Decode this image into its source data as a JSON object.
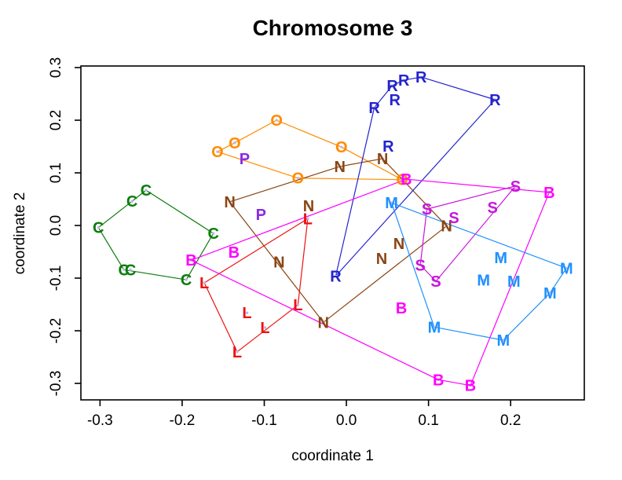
{
  "title": "Chromosome 3",
  "axes": {
    "xlabel": "coordinate 1",
    "ylabel": "coordinate 2"
  },
  "chart_data": {
    "type": "scatter",
    "title": "Chromosome 3",
    "xlabel": "coordinate 1",
    "ylabel": "coordinate 2",
    "grid": false,
    "legend": "none",
    "x_ticks": [
      -0.3,
      -0.2,
      -0.1,
      0.0,
      0.1,
      0.2
    ],
    "x_tick_labels": [
      "-0.3",
      "-0.2",
      "-0.1",
      "0.0",
      "0.1",
      "0.2"
    ],
    "y_ticks": [
      -0.3,
      -0.2,
      -0.1,
      0.0,
      0.1,
      0.2,
      0.3
    ],
    "y_tick_labels": [
      "-0.3",
      "-0.2",
      "-0.1",
      "0.0",
      "0.1",
      "0.2",
      "0.3"
    ],
    "x_range": [
      -0.3233,
      0.2897
    ],
    "y_range": [
      -0.3313,
      0.303
    ],
    "point_marker_color": "#b9b9ea",
    "groups": [
      {
        "label": "C",
        "color": "#0E7C0E",
        "points": [
          [
            -0.302,
            -0.004
          ],
          [
            -0.261,
            0.046
          ],
          [
            -0.244,
            0.067
          ],
          [
            -0.162,
            -0.015
          ],
          [
            -0.195,
            -0.103
          ],
          [
            -0.271,
            -0.084
          ],
          [
            -0.263,
            -0.084
          ]
        ],
        "edges": [
          [
            2,
            1
          ],
          [
            1,
            0
          ],
          [
            0,
            5
          ],
          [
            5,
            4
          ],
          [
            4,
            3
          ],
          [
            3,
            2
          ]
        ]
      },
      {
        "label": "O",
        "color": "#FF8C00",
        "points": [
          [
            -0.157,
            0.14
          ],
          [
            -0.136,
            0.157
          ],
          [
            -0.085,
            0.2
          ],
          [
            -0.006,
            0.149
          ],
          [
            0.068,
            0.087
          ],
          [
            -0.059,
            0.09
          ]
        ],
        "edges": [
          [
            0,
            1
          ],
          [
            1,
            2
          ],
          [
            2,
            3
          ],
          [
            3,
            4
          ],
          [
            4,
            5
          ],
          [
            5,
            0
          ]
        ]
      },
      {
        "label": "P",
        "color": "#8A2BE2",
        "points": [
          [
            -0.124,
            0.127
          ],
          [
            -0.104,
            0.021
          ]
        ],
        "edges": []
      },
      {
        "label": "N",
        "color": "#8B4513",
        "points": [
          [
            -0.142,
            0.045
          ],
          [
            -0.008,
            0.112
          ],
          [
            0.044,
            0.127
          ],
          [
            0.122,
            -0.001
          ],
          [
            -0.028,
            -0.184
          ],
          [
            -0.082,
            -0.069
          ],
          [
            -0.046,
            0.037
          ],
          [
            0.043,
            -0.063
          ],
          [
            0.064,
            -0.034
          ]
        ],
        "edges": [
          [
            0,
            1
          ],
          [
            1,
            2
          ],
          [
            2,
            3
          ],
          [
            3,
            4
          ],
          [
            4,
            0
          ]
        ]
      },
      {
        "label": "R",
        "color": "#2424CD",
        "points": [
          [
            0.034,
            0.224
          ],
          [
            0.056,
            0.266
          ],
          [
            0.07,
            0.276
          ],
          [
            0.091,
            0.282
          ],
          [
            0.181,
            0.239
          ],
          [
            -0.013,
            -0.096
          ],
          [
            0.059,
            0.239
          ],
          [
            0.051,
            0.151
          ]
        ],
        "edges": [
          [
            5,
            0
          ],
          [
            0,
            1
          ],
          [
            1,
            2
          ],
          [
            2,
            3
          ],
          [
            3,
            4
          ],
          [
            4,
            5
          ]
        ]
      },
      {
        "label": "L",
        "color": "#EE1111",
        "points": [
          [
            -0.047,
            0.013
          ],
          [
            -0.173,
            -0.109
          ],
          [
            -0.121,
            -0.166
          ],
          [
            -0.099,
            -0.194
          ],
          [
            -0.059,
            -0.151
          ],
          [
            -0.133,
            -0.24
          ]
        ],
        "edges": [
          [
            1,
            0
          ],
          [
            0,
            4
          ],
          [
            4,
            5
          ],
          [
            5,
            1
          ]
        ]
      },
      {
        "label": "B",
        "color": "#FF00FF",
        "points": [
          [
            -0.189,
            -0.066
          ],
          [
            -0.137,
            -0.051
          ],
          [
            0.073,
            0.088
          ],
          [
            0.247,
            0.063
          ],
          [
            0.067,
            -0.157
          ],
          [
            0.112,
            -0.293
          ],
          [
            0.151,
            -0.304
          ]
        ],
        "edges": [
          [
            0,
            2
          ],
          [
            2,
            3
          ],
          [
            3,
            6
          ],
          [
            6,
            5
          ],
          [
            5,
            0
          ]
        ]
      },
      {
        "label": "S",
        "color": "#C816DC",
        "points": [
          [
            0.098,
            0.031
          ],
          [
            0.131,
            0.015
          ],
          [
            0.178,
            0.034
          ],
          [
            0.206,
            0.075
          ],
          [
            0.09,
            -0.075
          ],
          [
            0.109,
            -0.106
          ]
        ],
        "edges": [
          [
            0,
            3
          ],
          [
            3,
            5
          ],
          [
            5,
            4
          ],
          [
            4,
            0
          ]
        ]
      },
      {
        "label": "M",
        "color": "#1E90FF",
        "points": [
          [
            0.055,
            0.043
          ],
          [
            0.188,
            -0.061
          ],
          [
            0.167,
            -0.104
          ],
          [
            0.204,
            -0.106
          ],
          [
            0.268,
            -0.081
          ],
          [
            0.248,
            -0.128
          ],
          [
            0.107,
            -0.193
          ],
          [
            0.191,
            -0.218
          ]
        ],
        "edges": [
          [
            0,
            4
          ],
          [
            4,
            5
          ],
          [
            5,
            7
          ],
          [
            7,
            6
          ],
          [
            6,
            0
          ]
        ]
      }
    ]
  }
}
